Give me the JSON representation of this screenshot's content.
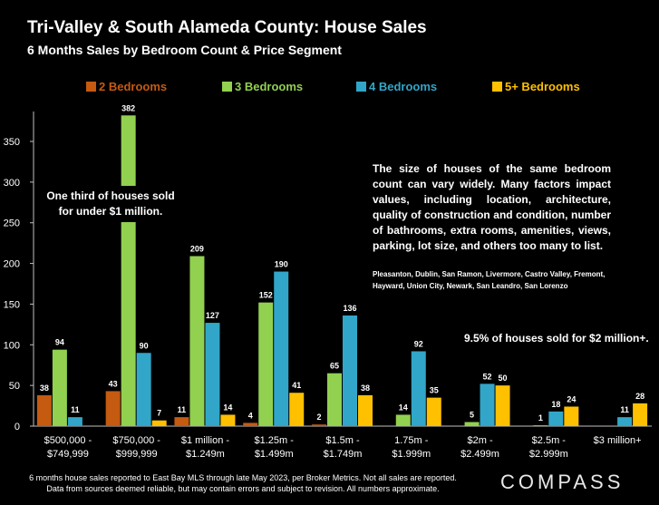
{
  "title": "Tri-Valley & South Alameda County: House Sales",
  "subtitle": "6 Months Sales by Bedroom Count & Price Segment",
  "annotations": {
    "left": "One third of houses sold for under $1 million.",
    "right": "The size of houses of the same bedroom count can vary widely. Many factors impact values, including location, architecture, quality of construction and condition, number of bathrooms, extra rooms, amenities, views, parking, lot size, and others too many to list.",
    "cities": "Pleasanton, Dublin, San Ramon, Livermore, Castro Valley, Fremont, Hayward, Union City, Newark, San Leandro, San Lorenzo",
    "over2m": "9.5% of houses sold for $2 million+."
  },
  "footnote": {
    "line1": "6 months house sales reported to East Bay MLS through late May 2023, per Broker Metrics. Not all sales are reported.",
    "line2": "Data from sources deemed reliable, but may contain errors and subject to revision. All numbers approximate."
  },
  "brand": "COMPASS",
  "chart_data": {
    "type": "bar",
    "title": "Tri-Valley & South Alameda County: House Sales",
    "subtitle": "6 Months Sales by Bedroom Count & Price Segment",
    "categories": [
      [
        "$500,000 -",
        "$749,999"
      ],
      [
        "$750,000 -",
        "$999,999"
      ],
      [
        "$1 million -",
        "$1.249m"
      ],
      [
        "$1.25m -",
        "$1.499m"
      ],
      [
        "$1.5m -",
        "$1.749m"
      ],
      [
        "1.75m -",
        "$1.999m"
      ],
      [
        "$2m -",
        "$2.499m"
      ],
      [
        "$2.5m -",
        "$2.999m"
      ],
      [
        "$3 million+"
      ]
    ],
    "series": [
      {
        "name": "2 Bedrooms",
        "color": "#c55a11",
        "values": [
          38,
          43,
          11,
          4,
          2,
          null,
          null,
          null,
          null
        ]
      },
      {
        "name": "3 Bedrooms",
        "color": "#92d050",
        "values": [
          94,
          382,
          209,
          152,
          65,
          14,
          5,
          1,
          null
        ]
      },
      {
        "name": "4 Bedrooms",
        "color": "#31a6c9",
        "values": [
          11,
          90,
          127,
          190,
          136,
          92,
          52,
          18,
          11
        ]
      },
      {
        "name": "5+ Bedrooms",
        "color": "#ffc000",
        "values": [
          null,
          7,
          14,
          41,
          38,
          35,
          50,
          24,
          28
        ]
      }
    ],
    "yticks": [
      0,
      50,
      100,
      150,
      200,
      250,
      300,
      350
    ],
    "ylim": [
      0,
      400
    ],
    "axis_break": true,
    "grid": false,
    "legend": "top"
  }
}
